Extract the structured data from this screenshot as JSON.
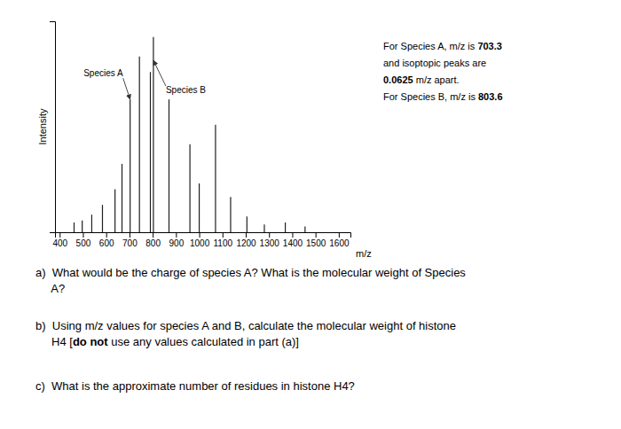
{
  "chart_data": {
    "type": "stem",
    "xlabel": "m/z",
    "ylabel": "Intensity",
    "x": [
      462,
      497,
      538,
      584,
      638,
      668,
      703,
      743,
      790,
      803,
      870,
      960,
      1000,
      1070,
      1135,
      1205,
      1280,
      1370,
      1455
    ],
    "values": [
      0.05,
      0.06,
      0.09,
      0.14,
      0.22,
      0.35,
      0.68,
      0.9,
      0.82,
      1.0,
      0.68,
      0.45,
      0.25,
      0.55,
      0.18,
      0.08,
      0.04,
      0.05,
      0.03
    ],
    "xlim": [
      380,
      1650
    ],
    "ylim": [
      0,
      1.08
    ],
    "xticks": [
      400,
      500,
      600,
      700,
      800,
      900,
      1000,
      1100,
      1200,
      1300,
      1400,
      1500,
      1600
    ],
    "yticks": [],
    "tick_labels": "x",
    "annotations": [
      {
        "text": "Species A",
        "x": 703,
        "y": 0.68
      },
      {
        "text": "Species B",
        "x": 803,
        "y": 0.88
      }
    ]
  },
  "notes": [
    [
      {
        "text": "For Species A, m/z is "
      },
      {
        "text": "703.3",
        "bold": true
      }
    ],
    [
      {
        "text": "and isoptopic peaks are"
      }
    ],
    [
      {
        "text": "0.0625",
        "bold": true
      },
      {
        "text": " m/z apart."
      }
    ],
    [
      {
        "text": "For Species B, m/z is "
      },
      {
        "text": "803.6",
        "bold": true
      }
    ]
  ],
  "questions": [
    [
      [
        {
          "text": "a)  What would be the charge of species A? What is the molecular weight of Species"
        }
      ],
      [
        {
          "text": "     A?"
        }
      ]
    ],
    [
      [
        {
          "text": "b)  Using m/z values for species A and B, calculate the molecular weight of histone"
        }
      ],
      [
        {
          "text": "     H4 ["
        },
        {
          "text": "do not",
          "bold": true
        },
        {
          "text": " use any values calculated in part (a)]"
        }
      ]
    ],
    [
      [
        {
          "text": "c)  What is the approximate number of residues in histone H4?"
        }
      ]
    ]
  ]
}
